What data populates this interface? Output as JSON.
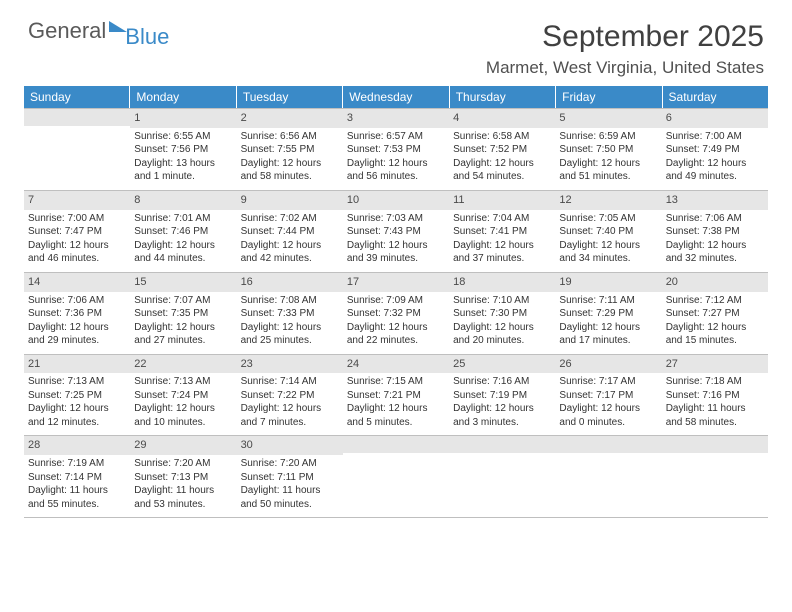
{
  "logo": {
    "part1": "General",
    "part2": "Blue"
  },
  "header": {
    "month_title": "September 2025",
    "location": "Marmet, West Virginia, United States"
  },
  "colors": {
    "header_bg": "#3a8ac8",
    "header_text": "#ffffff",
    "daynum_bg": "#e6e6e6",
    "border": "#bfbfbf",
    "body_text": "#333333"
  },
  "days_of_week": [
    "Sunday",
    "Monday",
    "Tuesday",
    "Wednesday",
    "Thursday",
    "Friday",
    "Saturday"
  ],
  "weeks": [
    [
      {
        "n": "",
        "sr": "",
        "ss": "",
        "dl": ""
      },
      {
        "n": "1",
        "sr": "Sunrise: 6:55 AM",
        "ss": "Sunset: 7:56 PM",
        "dl": "Daylight: 13 hours and 1 minute."
      },
      {
        "n": "2",
        "sr": "Sunrise: 6:56 AM",
        "ss": "Sunset: 7:55 PM",
        "dl": "Daylight: 12 hours and 58 minutes."
      },
      {
        "n": "3",
        "sr": "Sunrise: 6:57 AM",
        "ss": "Sunset: 7:53 PM",
        "dl": "Daylight: 12 hours and 56 minutes."
      },
      {
        "n": "4",
        "sr": "Sunrise: 6:58 AM",
        "ss": "Sunset: 7:52 PM",
        "dl": "Daylight: 12 hours and 54 minutes."
      },
      {
        "n": "5",
        "sr": "Sunrise: 6:59 AM",
        "ss": "Sunset: 7:50 PM",
        "dl": "Daylight: 12 hours and 51 minutes."
      },
      {
        "n": "6",
        "sr": "Sunrise: 7:00 AM",
        "ss": "Sunset: 7:49 PM",
        "dl": "Daylight: 12 hours and 49 minutes."
      }
    ],
    [
      {
        "n": "7",
        "sr": "Sunrise: 7:00 AM",
        "ss": "Sunset: 7:47 PM",
        "dl": "Daylight: 12 hours and 46 minutes."
      },
      {
        "n": "8",
        "sr": "Sunrise: 7:01 AM",
        "ss": "Sunset: 7:46 PM",
        "dl": "Daylight: 12 hours and 44 minutes."
      },
      {
        "n": "9",
        "sr": "Sunrise: 7:02 AM",
        "ss": "Sunset: 7:44 PM",
        "dl": "Daylight: 12 hours and 42 minutes."
      },
      {
        "n": "10",
        "sr": "Sunrise: 7:03 AM",
        "ss": "Sunset: 7:43 PM",
        "dl": "Daylight: 12 hours and 39 minutes."
      },
      {
        "n": "11",
        "sr": "Sunrise: 7:04 AM",
        "ss": "Sunset: 7:41 PM",
        "dl": "Daylight: 12 hours and 37 minutes."
      },
      {
        "n": "12",
        "sr": "Sunrise: 7:05 AM",
        "ss": "Sunset: 7:40 PM",
        "dl": "Daylight: 12 hours and 34 minutes."
      },
      {
        "n": "13",
        "sr": "Sunrise: 7:06 AM",
        "ss": "Sunset: 7:38 PM",
        "dl": "Daylight: 12 hours and 32 minutes."
      }
    ],
    [
      {
        "n": "14",
        "sr": "Sunrise: 7:06 AM",
        "ss": "Sunset: 7:36 PM",
        "dl": "Daylight: 12 hours and 29 minutes."
      },
      {
        "n": "15",
        "sr": "Sunrise: 7:07 AM",
        "ss": "Sunset: 7:35 PM",
        "dl": "Daylight: 12 hours and 27 minutes."
      },
      {
        "n": "16",
        "sr": "Sunrise: 7:08 AM",
        "ss": "Sunset: 7:33 PM",
        "dl": "Daylight: 12 hours and 25 minutes."
      },
      {
        "n": "17",
        "sr": "Sunrise: 7:09 AM",
        "ss": "Sunset: 7:32 PM",
        "dl": "Daylight: 12 hours and 22 minutes."
      },
      {
        "n": "18",
        "sr": "Sunrise: 7:10 AM",
        "ss": "Sunset: 7:30 PM",
        "dl": "Daylight: 12 hours and 20 minutes."
      },
      {
        "n": "19",
        "sr": "Sunrise: 7:11 AM",
        "ss": "Sunset: 7:29 PM",
        "dl": "Daylight: 12 hours and 17 minutes."
      },
      {
        "n": "20",
        "sr": "Sunrise: 7:12 AM",
        "ss": "Sunset: 7:27 PM",
        "dl": "Daylight: 12 hours and 15 minutes."
      }
    ],
    [
      {
        "n": "21",
        "sr": "Sunrise: 7:13 AM",
        "ss": "Sunset: 7:25 PM",
        "dl": "Daylight: 12 hours and 12 minutes."
      },
      {
        "n": "22",
        "sr": "Sunrise: 7:13 AM",
        "ss": "Sunset: 7:24 PM",
        "dl": "Daylight: 12 hours and 10 minutes."
      },
      {
        "n": "23",
        "sr": "Sunrise: 7:14 AM",
        "ss": "Sunset: 7:22 PM",
        "dl": "Daylight: 12 hours and 7 minutes."
      },
      {
        "n": "24",
        "sr": "Sunrise: 7:15 AM",
        "ss": "Sunset: 7:21 PM",
        "dl": "Daylight: 12 hours and 5 minutes."
      },
      {
        "n": "25",
        "sr": "Sunrise: 7:16 AM",
        "ss": "Sunset: 7:19 PM",
        "dl": "Daylight: 12 hours and 3 minutes."
      },
      {
        "n": "26",
        "sr": "Sunrise: 7:17 AM",
        "ss": "Sunset: 7:17 PM",
        "dl": "Daylight: 12 hours and 0 minutes."
      },
      {
        "n": "27",
        "sr": "Sunrise: 7:18 AM",
        "ss": "Sunset: 7:16 PM",
        "dl": "Daylight: 11 hours and 58 minutes."
      }
    ],
    [
      {
        "n": "28",
        "sr": "Sunrise: 7:19 AM",
        "ss": "Sunset: 7:14 PM",
        "dl": "Daylight: 11 hours and 55 minutes."
      },
      {
        "n": "29",
        "sr": "Sunrise: 7:20 AM",
        "ss": "Sunset: 7:13 PM",
        "dl": "Daylight: 11 hours and 53 minutes."
      },
      {
        "n": "30",
        "sr": "Sunrise: 7:20 AM",
        "ss": "Sunset: 7:11 PM",
        "dl": "Daylight: 11 hours and 50 minutes."
      },
      {
        "n": "",
        "sr": "",
        "ss": "",
        "dl": ""
      },
      {
        "n": "",
        "sr": "",
        "ss": "",
        "dl": ""
      },
      {
        "n": "",
        "sr": "",
        "ss": "",
        "dl": ""
      },
      {
        "n": "",
        "sr": "",
        "ss": "",
        "dl": ""
      }
    ]
  ]
}
